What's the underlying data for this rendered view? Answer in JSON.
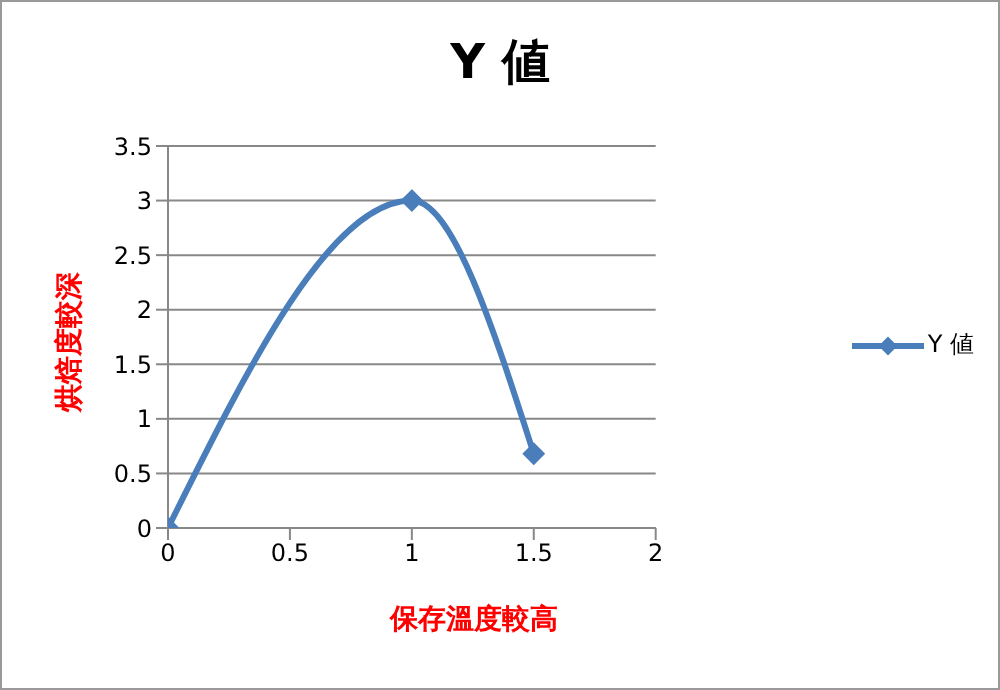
{
  "chart_data": {
    "type": "line",
    "title": "Y 値",
    "xlabel": "保存溫度較高",
    "ylabel": "烘焙度較深",
    "x": [
      0,
      1,
      1.5
    ],
    "series": [
      {
        "name": "Y 値",
        "color": "#4a7ebb",
        "values": [
          0,
          3,
          0.68
        ]
      }
    ],
    "xlim": [
      0,
      2
    ],
    "xticks": [
      0,
      0.5,
      1,
      1.5,
      2
    ],
    "ylim": [
      0,
      3.5
    ],
    "yticks": [
      0,
      0.5,
      1,
      1.5,
      2,
      2.5,
      3,
      3.5
    ],
    "grid": "y",
    "legend": "right",
    "marker": "diamond",
    "line_style": "solid"
  }
}
